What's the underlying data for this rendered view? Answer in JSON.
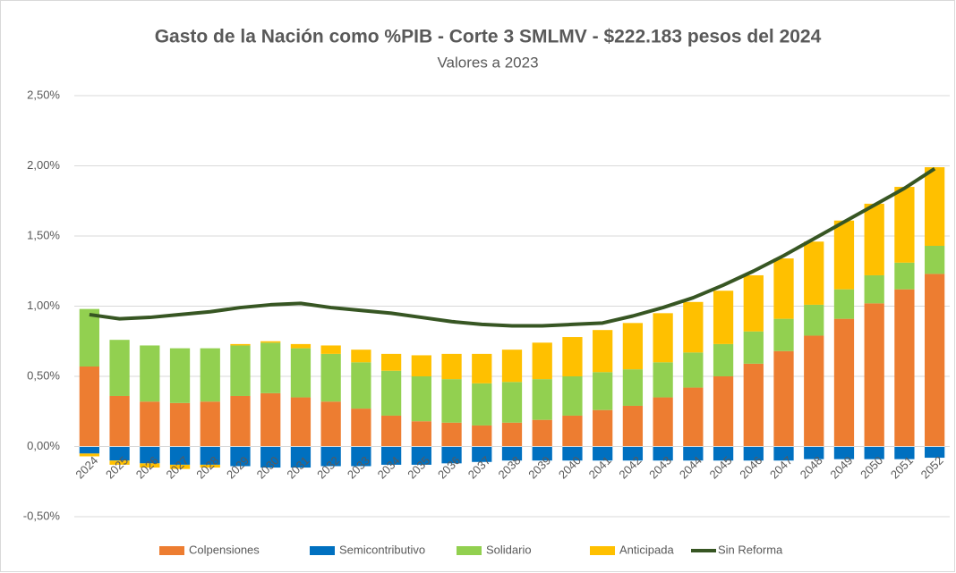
{
  "chart_data": {
    "type": "bar",
    "stacked": true,
    "title": "Gasto de la Nación como %PIB - Corte 3 SMLMV - $222.183 pesos del 2024",
    "subtitle": "Valores a 2023",
    "categories": [
      "2024",
      "2025",
      "2026",
      "2027",
      "2028",
      "2029",
      "2030",
      "2031",
      "2032",
      "2033",
      "2034",
      "2035",
      "2036",
      "2037",
      "2038",
      "2039",
      "2040",
      "2041",
      "2042",
      "2043",
      "2044",
      "2045",
      "2046",
      "2047",
      "2048",
      "2049",
      "2050",
      "2051",
      "2052"
    ],
    "series": [
      {
        "name": "Colpensiones",
        "color": "#ed7d31",
        "type": "bar",
        "values": [
          0.57,
          0.36,
          0.32,
          0.31,
          0.32,
          0.36,
          0.38,
          0.35,
          0.32,
          0.27,
          0.22,
          0.18,
          0.17,
          0.15,
          0.17,
          0.19,
          0.22,
          0.26,
          0.29,
          0.35,
          0.42,
          0.5,
          0.59,
          0.68,
          0.79,
          0.91,
          1.02,
          1.12,
          1.23
        ]
      },
      {
        "name": "Semicontributivo",
        "color": "#0070c0",
        "type": "bar",
        "values": [
          -0.05,
          -0.1,
          -0.12,
          -0.13,
          -0.13,
          -0.14,
          -0.15,
          -0.15,
          -0.14,
          -0.14,
          -0.13,
          -0.13,
          -0.12,
          -0.11,
          -0.1,
          -0.1,
          -0.1,
          -0.1,
          -0.1,
          -0.1,
          -0.1,
          -0.1,
          -0.1,
          -0.1,
          -0.09,
          -0.09,
          -0.09,
          -0.09,
          -0.08
        ]
      },
      {
        "name": "Solidario",
        "color": "#92d050",
        "type": "bar",
        "values": [
          0.41,
          0.4,
          0.4,
          0.39,
          0.38,
          0.36,
          0.36,
          0.35,
          0.34,
          0.33,
          0.32,
          0.32,
          0.31,
          0.3,
          0.29,
          0.29,
          0.28,
          0.27,
          0.26,
          0.25,
          0.25,
          0.23,
          0.23,
          0.23,
          0.22,
          0.21,
          0.2,
          0.19,
          0.2
        ]
      },
      {
        "name": "Anticipada",
        "color": "#ffc000",
        "type": "bar",
        "values": [
          -0.02,
          -0.03,
          -0.03,
          -0.03,
          -0.02,
          0.01,
          0.01,
          0.03,
          0.06,
          0.09,
          0.12,
          0.15,
          0.18,
          0.21,
          0.23,
          0.26,
          0.28,
          0.3,
          0.33,
          0.35,
          0.36,
          0.38,
          0.4,
          0.43,
          0.45,
          0.49,
          0.51,
          0.54,
          0.56
        ]
      },
      {
        "name": "Sin Reforma",
        "color": "#375623",
        "type": "line",
        "values": [
          0.94,
          0.91,
          0.92,
          0.94,
          0.96,
          0.99,
          1.01,
          1.02,
          0.99,
          0.97,
          0.95,
          0.92,
          0.89,
          0.87,
          0.86,
          0.86,
          0.87,
          0.88,
          0.93,
          0.99,
          1.06,
          1.15,
          1.25,
          1.36,
          1.48,
          1.6,
          1.72,
          1.84,
          1.98
        ]
      }
    ],
    "ylim": [
      -0.5,
      2.5
    ],
    "yticks": [
      {
        "value": -0.5,
        "label": "-0,50%"
      },
      {
        "value": 0,
        "label": "0,00%"
      },
      {
        "value": 0.5,
        "label": "0,50%"
      },
      {
        "value": 1,
        "label": "1,00%"
      },
      {
        "value": 1.5,
        "label": "1,50%"
      },
      {
        "value": 2,
        "label": "2,00%"
      },
      {
        "value": 2.5,
        "label": "2,50%"
      }
    ],
    "grid": true,
    "legend": "bottom"
  }
}
